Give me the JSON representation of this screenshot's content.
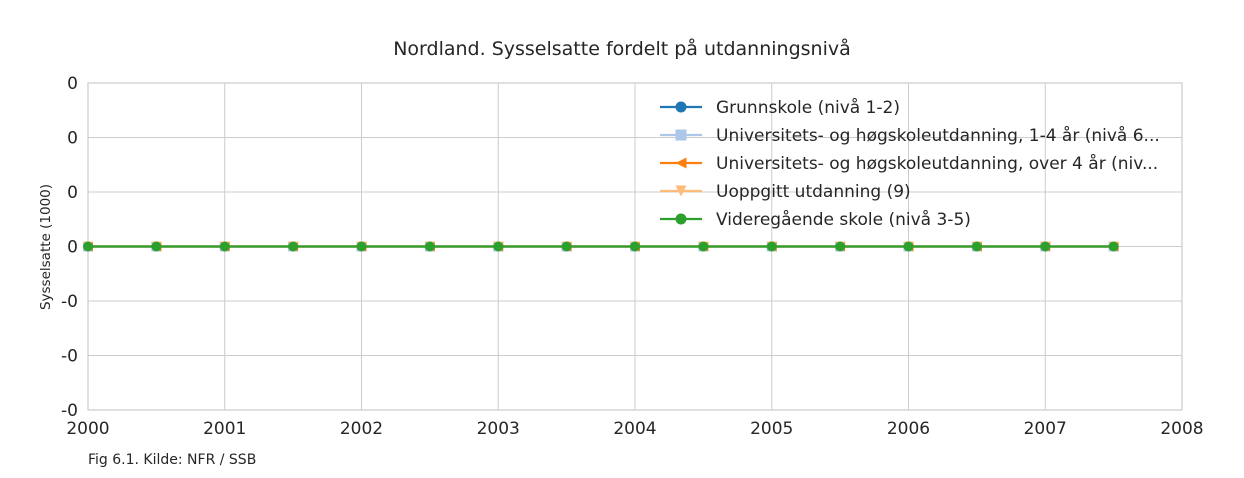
{
  "chart_data": {
    "type": "line",
    "title": "Nordland. Sysselsatte fordelt på utdanningsnivå",
    "xlabel": "",
    "ylabel": "Sysselsatte (1000)",
    "caption": "Fig 6.1. Kilde: NFR / SSB",
    "xlim": [
      2000,
      2008
    ],
    "ylim": [
      -0.06,
      0.06
    ],
    "x_ticks": [
      "2000",
      "2001",
      "2002",
      "2003",
      "2004",
      "2005",
      "2006",
      "2007",
      "2008"
    ],
    "y_ticks": [
      "0",
      "0",
      "0",
      "0",
      "-0",
      "-0",
      "-0"
    ],
    "grid": true,
    "legend_position": "top-right",
    "x": [
      2000,
      2000.5,
      2001,
      2001.5,
      2002,
      2002.5,
      2003,
      2003.5,
      2004,
      2004.5,
      2005,
      2005.5,
      2006,
      2006.5,
      2007,
      2007.5
    ],
    "series": [
      {
        "name": "Grunnskole (nivå 1-2)",
        "color": "#1f77b4",
        "marker": "circle",
        "values": [
          0,
          0,
          0,
          0,
          0,
          0,
          0,
          0,
          0,
          0,
          0,
          0,
          0,
          0,
          0,
          0
        ]
      },
      {
        "name": "Universitets- og høgskoleutdanning, 1-4 år (nivå 6...",
        "color": "#aec7e8",
        "marker": "square",
        "values": [
          0,
          0,
          0,
          0,
          0,
          0,
          0,
          0,
          0,
          0,
          0,
          0,
          0,
          0,
          0,
          0
        ]
      },
      {
        "name": "Universitets- og høgskoleutdanning, over 4 år (niv...",
        "color": "#ff7f0e",
        "marker": "triangle-left",
        "values": [
          0,
          0,
          0,
          0,
          0,
          0,
          0,
          0,
          0,
          0,
          0,
          0,
          0,
          0,
          0,
          0
        ]
      },
      {
        "name": "Uoppgitt utdanning (9)",
        "color": "#ffbb78",
        "marker": "triangle-down",
        "values": [
          0,
          0,
          0,
          0,
          0,
          0,
          0,
          0,
          0,
          0,
          0,
          0,
          0,
          0,
          0,
          0
        ]
      },
      {
        "name": "Videregående skole (nivå 3-5)",
        "color": "#2ca02c",
        "marker": "circle",
        "values": [
          0,
          0,
          0,
          0,
          0,
          0,
          0,
          0,
          0,
          0,
          0,
          0,
          0,
          0,
          0,
          0
        ]
      }
    ]
  }
}
